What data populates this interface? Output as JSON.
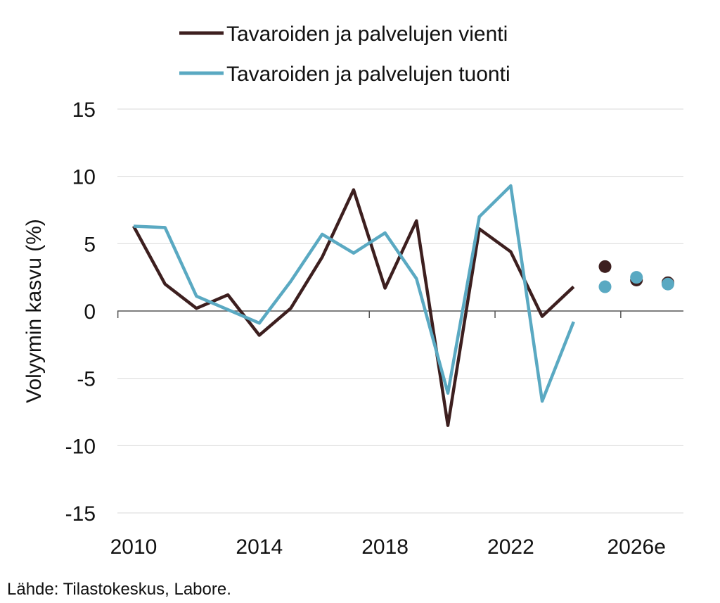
{
  "chart_data": {
    "type": "line",
    "title": "",
    "xlabel": "",
    "ylabel": "Volyymin kasvu (%)",
    "ylim": [
      -15,
      15
    ],
    "yticks": [
      15,
      10,
      5,
      0,
      -5,
      -10,
      -15
    ],
    "xticks": [
      {
        "x": 2010,
        "label": "2010"
      },
      {
        "x": 2014,
        "label": "2014"
      },
      {
        "x": 2018,
        "label": "2018"
      },
      {
        "x": 2022,
        "label": "2022"
      },
      {
        "x": 2026,
        "label": "2026e"
      }
    ],
    "grid": true,
    "legend_position": "top",
    "series": [
      {
        "name": "Tavaroiden ja palvelujen vienti",
        "color": "#3d1f1f",
        "x": [
          2010,
          2011,
          2012,
          2013,
          2014,
          2015,
          2016,
          2017,
          2018,
          2019,
          2020,
          2021,
          2022,
          2023,
          2024
        ],
        "values": [
          6.3,
          2.0,
          0.2,
          1.2,
          -1.8,
          0.2,
          4.0,
          9.0,
          1.7,
          6.7,
          -8.5,
          6.1,
          4.4,
          -0.4,
          1.8
        ],
        "forecast_x": [
          2025,
          2026,
          2027
        ],
        "forecast_values": [
          3.3,
          2.3,
          2.1
        ]
      },
      {
        "name": "Tavaroiden ja palvelujen tuonti",
        "color": "#5aa9c2",
        "x": [
          2010,
          2011,
          2012,
          2013,
          2014,
          2015,
          2016,
          2017,
          2018,
          2019,
          2020,
          2021,
          2022,
          2023,
          2024
        ],
        "values": [
          6.3,
          6.2,
          1.1,
          0.1,
          -0.9,
          2.2,
          5.7,
          4.3,
          5.8,
          2.4,
          -6.1,
          7.0,
          9.3,
          -6.7,
          -0.8
        ],
        "forecast_x": [
          2025,
          2026,
          2027
        ],
        "forecast_values": [
          1.8,
          2.5,
          2.0
        ]
      }
    ]
  },
  "source": "Lähde: Tilastokeskus, Labore."
}
